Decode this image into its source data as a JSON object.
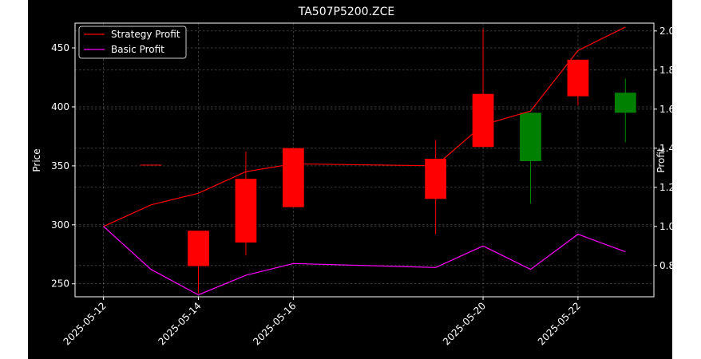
{
  "chart_data": {
    "type": "candlestick",
    "title": "TA507P5200.ZCE",
    "ylabel": "Price",
    "y2label": "Profit",
    "ylim": [
      239,
      471
    ],
    "y2lim": [
      0.64,
      2.04
    ],
    "yticks": [
      250,
      300,
      350,
      400,
      450
    ],
    "y2ticks": [
      0.8,
      1.0,
      1.2,
      1.4,
      1.6,
      1.8,
      2.0
    ],
    "grid": true,
    "legend_position": "top-left",
    "x_labeled_ticks": [
      "2025-05-12",
      "2025-05-14",
      "2025-05-16",
      "2025-05-20",
      "2025-05-22"
    ],
    "candles": [
      {
        "x": "2025-05-13",
        "open": 351,
        "close": 351,
        "high": 351,
        "low": 351,
        "color": "#ff0000"
      },
      {
        "x": "2025-05-14",
        "open": 265,
        "close": 295,
        "high": 295,
        "low": 242,
        "color": "#ff0000"
      },
      {
        "x": "2025-05-15",
        "open": 285,
        "close": 339,
        "high": 362,
        "low": 274,
        "color": "#ff0000"
      },
      {
        "x": "2025-05-16",
        "open": 315,
        "close": 365,
        "high": 365,
        "low": 315,
        "color": "#ff0000"
      },
      {
        "x": "2025-05-19",
        "open": 322,
        "close": 356,
        "high": 372,
        "low": 292,
        "color": "#ff0000"
      },
      {
        "x": "2025-05-20",
        "open": 366,
        "close": 411,
        "high": 466,
        "low": 366,
        "color": "#ff0000"
      },
      {
        "x": "2025-05-21",
        "open": 395,
        "close": 354,
        "high": 395,
        "low": 318,
        "color": "#008000"
      },
      {
        "x": "2025-05-22",
        "open": 409,
        "close": 440,
        "high": 440,
        "low": 401,
        "color": "#ff0000"
      },
      {
        "x": "2025-05-23",
        "open": 412,
        "close": 395,
        "high": 424,
        "low": 370,
        "color": "#008000"
      }
    ],
    "series": [
      {
        "name": "Strategy Profit",
        "color": "#ff0000",
        "axis": "right",
        "x": [
          "2025-05-12",
          "2025-05-13",
          "2025-05-14",
          "2025-05-15",
          "2025-05-16",
          "2025-05-19",
          "2025-05-20",
          "2025-05-21",
          "2025-05-22",
          "2025-05-23"
        ],
        "values": [
          1.0,
          1.11,
          1.17,
          1.28,
          1.32,
          1.31,
          1.52,
          1.59,
          1.9,
          2.02
        ]
      },
      {
        "name": "Basic Profit",
        "color": "#ff00ff",
        "axis": "right",
        "x": [
          "2025-05-12",
          "2025-05-13",
          "2025-05-14",
          "2025-05-15",
          "2025-05-16",
          "2025-05-19",
          "2025-05-20",
          "2025-05-21",
          "2025-05-22",
          "2025-05-23"
        ],
        "values": [
          1.0,
          0.78,
          0.65,
          0.75,
          0.81,
          0.79,
          0.9,
          0.78,
          0.96,
          0.87
        ]
      }
    ]
  }
}
